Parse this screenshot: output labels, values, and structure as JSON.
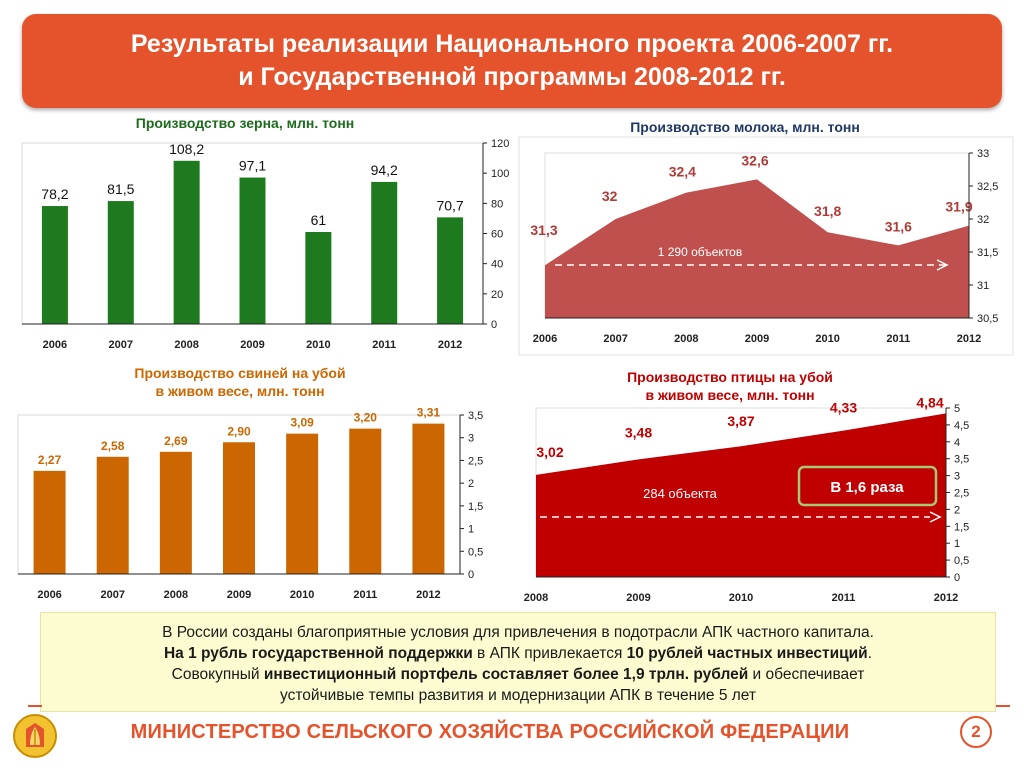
{
  "banner": {
    "line1": "Результаты реализации Национального проекта 2006-2007 гг.",
    "line2": "и Государственной программы 2008-2012 гг."
  },
  "chart_data": [
    {
      "type": "bar",
      "title": "Производство зерна, млн. тонн",
      "categories": [
        "2006",
        "2007",
        "2008",
        "2009",
        "2010",
        "2011",
        "2012"
      ],
      "values": [
        78.2,
        81.5,
        108.2,
        97.1,
        61,
        94.2,
        70.7
      ],
      "value_labels": [
        "78,2",
        "81,5",
        "108,2",
        "97,1",
        "61",
        "94,2",
        "70,7"
      ],
      "yticks": [
        "0",
        "20",
        "40",
        "60",
        "80",
        "100",
        "120"
      ],
      "ylim": [
        0,
        120
      ],
      "color": "#1e7a1e",
      "y_axis_side": "right"
    },
    {
      "type": "area",
      "title": "Производство молока, млн. тонн",
      "categories": [
        "2006",
        "2007",
        "2008",
        "2009",
        "2010",
        "2011",
        "2012"
      ],
      "values": [
        31.3,
        32,
        32.4,
        32.6,
        31.8,
        31.6,
        31.9
      ],
      "value_labels": [
        "31,3",
        "32",
        "32,4",
        "32,6",
        "31,8",
        "31,6",
        "31,9"
      ],
      "yticks": [
        "30,5",
        "31",
        "31,5",
        "32",
        "32,5",
        "33"
      ],
      "ylim": [
        30.5,
        33
      ],
      "color": "#c0504d",
      "annotation": "1 290 объектов",
      "y_axis_side": "right"
    },
    {
      "type": "bar",
      "title_line1": "Производство свиней на убой",
      "title_line2": "в живом весе, млн. тонн",
      "categories": [
        "2006",
        "2007",
        "2008",
        "2009",
        "2010",
        "2011",
        "2012"
      ],
      "values": [
        2.27,
        2.58,
        2.69,
        2.9,
        3.09,
        3.2,
        3.31
      ],
      "value_labels": [
        "2,27",
        "2,58",
        "2,69",
        "2,90",
        "3,09",
        "3,20",
        "3,31"
      ],
      "yticks": [
        "0",
        "0,5",
        "1",
        "1,5",
        "2",
        "2,5",
        "3",
        "3,5"
      ],
      "ylim": [
        0,
        3.5
      ],
      "color": "#cc6600",
      "y_axis_side": "right"
    },
    {
      "type": "area",
      "title_line1": "Производство птицы на убой",
      "title_line2": "в живом весе, млн. тонн",
      "categories": [
        "2008",
        "2009",
        "2010",
        "2011",
        "2012"
      ],
      "values": [
        3.02,
        3.48,
        3.87,
        4.33,
        4.84
      ],
      "value_labels": [
        "3,02",
        "3,48",
        "3,87",
        "4,33",
        "4,84"
      ],
      "yticks": [
        "0",
        "0,5",
        "1",
        "1,5",
        "2",
        "2,5",
        "3",
        "3,5",
        "4",
        "4,5",
        "5"
      ],
      "ylim": [
        0,
        5
      ],
      "color": "#c00000",
      "annotation": "284 объекта",
      "callout": "В 1,6 раза",
      "y_axis_side": "right"
    }
  ],
  "info": {
    "line1": "В России созданы благоприятные условия для привлечения в подотрасли АПК частного капитала.",
    "l2a": "На 1 рубль государственной поддержки",
    "l2b": " в АПК привлекается ",
    "l2c": "10 рублей частных инвестиций",
    "l2d": ".",
    "l3a": "Совокупный ",
    "l3b": "инвестиционный портфель составляет более 1,9 трлн. рублей",
    "l3c": " и обеспечивает",
    "line4": "устойчивые темпы развития и модернизации АПК в течение 5 лет"
  },
  "footer": {
    "ministry": "МИНИСТЕРСТВО СЕЛЬСКОГО ХОЗЯЙСТВА РОССИЙСКОЙ ФЕДЕРАЦИИ",
    "page": "2"
  },
  "colors": {
    "accent": "#e4532b",
    "info_bg": "#fdfcd0"
  }
}
